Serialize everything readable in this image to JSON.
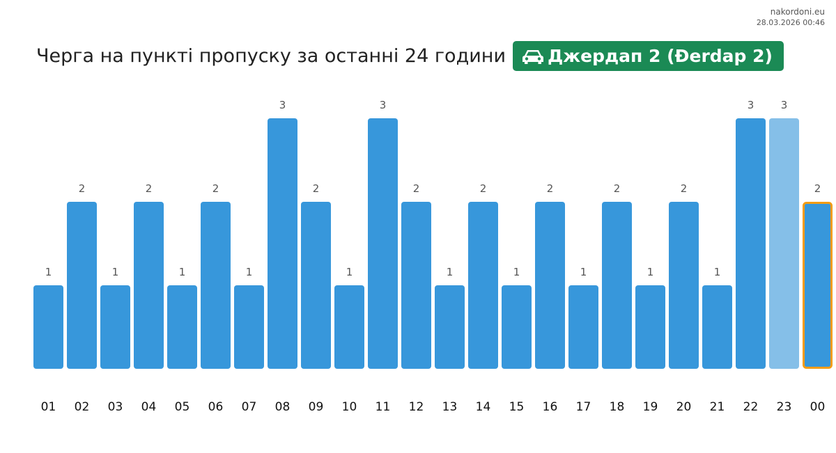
{
  "site": {
    "name": "nakordoni.eu",
    "timestamp": "28.03.2026 00:46"
  },
  "header": {
    "title": "Черга на пункті пропуску за останні 24 години",
    "badge_label": "Джердап 2 (Đerdap 2)",
    "badge_icon": "car-icon",
    "badge_color": "#1b8a55"
  },
  "chart_data": {
    "type": "bar",
    "categories": [
      "01",
      "02",
      "03",
      "04",
      "05",
      "06",
      "07",
      "08",
      "09",
      "10",
      "11",
      "12",
      "13",
      "14",
      "15",
      "16",
      "17",
      "18",
      "19",
      "20",
      "21",
      "22",
      "23",
      "00"
    ],
    "values": [
      1,
      2,
      1,
      2,
      1,
      2,
      1,
      3,
      2,
      1,
      3,
      2,
      1,
      2,
      1,
      2,
      1,
      2,
      1,
      2,
      1,
      3,
      3,
      2
    ],
    "data_labels": true,
    "ylim": [
      0,
      3
    ],
    "grid": false,
    "colors": {
      "bar": "#3797db",
      "bar_light": "#85bfe8",
      "highlight_outline": "#f39c12",
      "value_label": "#555555",
      "tick_label": "#111111"
    },
    "light_category": "23",
    "highlighted_category": "00"
  }
}
